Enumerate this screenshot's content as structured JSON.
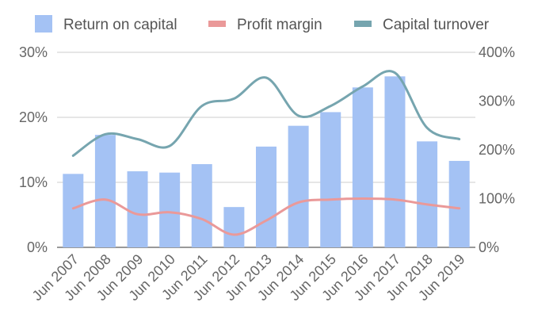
{
  "chart_data": {
    "type": "bar",
    "categories": [
      "Jun 2007",
      "Jun 2008",
      "Jun 2009",
      "Jun 2010",
      "Jun 2011",
      "Jun 2012",
      "Jun 2013",
      "Jun 2014",
      "Jun 2015",
      "Jun 2016",
      "Jun 2017",
      "Jun 2018",
      "Jun 2019"
    ],
    "series": [
      {
        "name": "Return on capital",
        "mark": "bar",
        "axis": "left",
        "color": "#a4c2f4",
        "values": [
          11.3,
          17.3,
          11.7,
          11.5,
          12.8,
          6.2,
          15.5,
          18.7,
          20.8,
          24.6,
          26.3,
          16.3,
          13.3
        ]
      },
      {
        "name": "Profit margin",
        "mark": "line",
        "axis": "right",
        "color": "#ea9999",
        "values": [
          80,
          98,
          68,
          72,
          58,
          26,
          55,
          92,
          98,
          100,
          98,
          88,
          80
        ]
      },
      {
        "name": "Capital turnover",
        "mark": "line",
        "axis": "right",
        "color": "#76a5af",
        "values": [
          188,
          232,
          222,
          208,
          290,
          305,
          348,
          270,
          290,
          330,
          358,
          245,
          222
        ]
      }
    ],
    "y_left": {
      "min": 0,
      "max": 30,
      "ticks": [
        0,
        10,
        20,
        30
      ],
      "format": "percent"
    },
    "y_right": {
      "min": 0,
      "max": 400,
      "ticks": [
        0,
        100,
        200,
        300,
        400
      ],
      "format": "percent"
    },
    "grid": true,
    "legend": "top"
  }
}
